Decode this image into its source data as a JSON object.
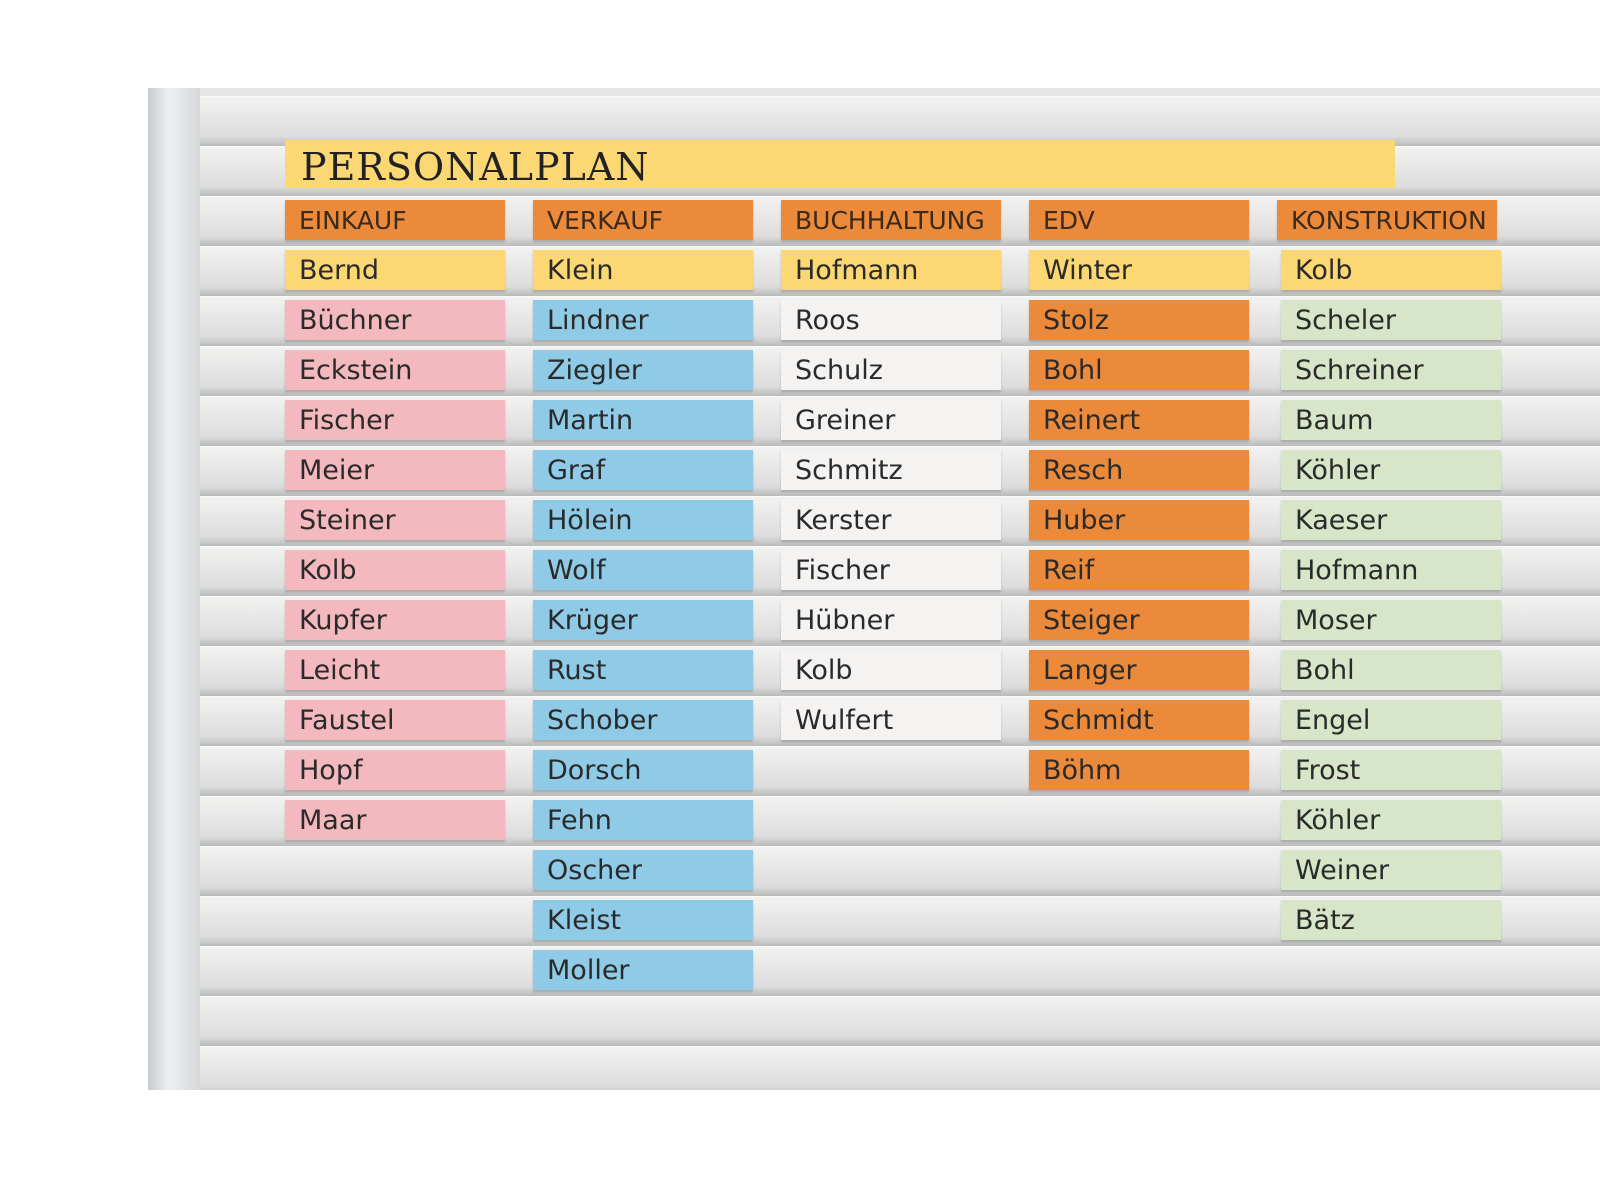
{
  "board": {
    "title": "PERSONALPLAN",
    "columns": [
      {
        "header": "EINKAUF",
        "names": [
          "Bernd",
          "Büchner",
          "Eckstein",
          "Fischer",
          "Meier",
          "Steiner",
          "Kolb",
          "Kupfer",
          "Leicht",
          "Faustel",
          "Hopf",
          "Maar"
        ]
      },
      {
        "header": "VERKAUF",
        "names": [
          "Klein",
          "Lindner",
          "Ziegler",
          "Martin",
          "Graf",
          "Hölein",
          "Wolf",
          "Krüger",
          "Rust",
          "Schober",
          "Dorsch",
          "Fehn",
          "Oscher",
          "Kleist",
          "Moller"
        ]
      },
      {
        "header": "BUCHHALTUNG",
        "names": [
          "Hofmann",
          "Roos",
          "Schulz",
          "Greiner",
          "Schmitz",
          "Kerster",
          "Fischer",
          "Hübner",
          "Kolb",
          "Wulfert"
        ]
      },
      {
        "header": "EDV",
        "names": [
          "Winter",
          "Stolz",
          "Bohl",
          "Reinert",
          "Resch",
          "Huber",
          "Reif",
          "Steiger",
          "Langer",
          "Schmidt",
          "Böhm"
        ]
      },
      {
        "header": "KONSTRUKTION",
        "names": [
          "Kolb",
          "Scheler",
          "Schreiner",
          "Baum",
          "Köhler",
          "Kaeser",
          "Hofmann",
          "Moser",
          "Bohl",
          "Engel",
          "Frost",
          "Köhler",
          "Weiner",
          "Bätz"
        ]
      }
    ]
  }
}
